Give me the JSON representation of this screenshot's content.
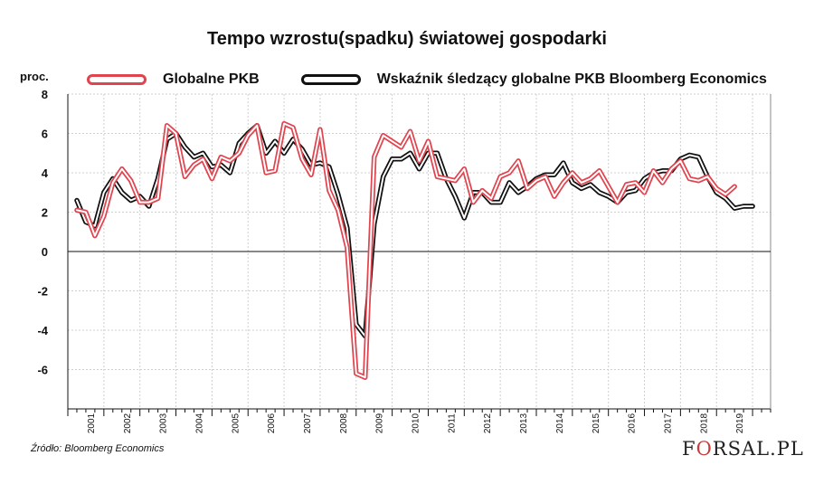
{
  "chart_data": {
    "type": "line",
    "title": "Tempo wzrostu(spadku) światowej gospodarki",
    "ylabel": "proc.",
    "ylim": [
      -8,
      8
    ],
    "yticks": [
      8,
      6,
      4,
      2,
      0,
      -2,
      -4,
      -6,
      -8
    ],
    "y_tick_labels": [
      "8",
      "6",
      "4",
      "2",
      "0",
      "-2",
      "-4",
      "-6",
      ""
    ],
    "x_range": [
      2000.75,
      2020.25
    ],
    "year_labels": [
      "2001",
      "2002",
      "2003",
      "2004",
      "2005",
      "2006",
      "2007",
      "2008",
      "2009",
      "2010",
      "2011",
      "2012",
      "2013",
      "2014",
      "2015",
      "2016",
      "2017",
      "2018",
      "2019"
    ],
    "grid": true,
    "legend_position": "top",
    "series": [
      {
        "name": "Globalne PKB",
        "color": "#e0454f",
        "style": "double-line",
        "x": [
          2001.0,
          2001.25,
          2001.5,
          2001.75,
          2002.0,
          2002.25,
          2002.5,
          2002.75,
          2003.0,
          2003.25,
          2003.5,
          2003.75,
          2004.0,
          2004.25,
          2004.5,
          2004.75,
          2005.0,
          2005.25,
          2005.5,
          2005.75,
          2006.0,
          2006.25,
          2006.5,
          2006.75,
          2007.0,
          2007.25,
          2007.5,
          2007.75,
          2008.0,
          2008.25,
          2008.5,
          2008.75,
          2009.0,
          2009.25,
          2009.5,
          2009.75,
          2010.0,
          2010.25,
          2010.5,
          2010.75,
          2011.0,
          2011.25,
          2011.5,
          2011.75,
          2012.0,
          2012.25,
          2012.5,
          2012.75,
          2013.0,
          2013.25,
          2013.5,
          2013.75,
          2014.0,
          2014.25,
          2014.5,
          2014.75,
          2015.0,
          2015.25,
          2015.5,
          2015.75,
          2016.0,
          2016.25,
          2016.5,
          2016.75,
          2017.0,
          2017.25,
          2017.5,
          2017.75,
          2018.0,
          2018.25,
          2018.5,
          2018.75,
          2019.0,
          2019.25
        ],
        "values": [
          2.1,
          2.0,
          0.8,
          1.8,
          3.5,
          4.2,
          3.6,
          2.5,
          2.5,
          2.7,
          6.4,
          6.0,
          3.8,
          4.4,
          4.7,
          3.7,
          4.8,
          4.6,
          5.0,
          5.9,
          6.4,
          4.0,
          4.1,
          6.5,
          6.3,
          4.7,
          3.9,
          6.2,
          3.1,
          2.1,
          0.2,
          -6.2,
          -6.4,
          4.8,
          5.9,
          5.6,
          5.3,
          6.1,
          4.6,
          5.6,
          3.8,
          3.7,
          3.6,
          4.2,
          2.5,
          3.1,
          2.7,
          3.8,
          4.0,
          4.6,
          3.2,
          3.6,
          3.8,
          2.8,
          3.5,
          4.0,
          3.5,
          3.7,
          4.1,
          3.3,
          2.5,
          3.4,
          3.5,
          3.0,
          4.1,
          3.5,
          4.2,
          4.6,
          3.7,
          3.6,
          3.8,
          3.2,
          2.9,
          3.3
        ]
      },
      {
        "name": "Wskaźnik śledzący globalne PKB Bloomberg Economics",
        "color": "#111111",
        "style": "double-line",
        "x": [
          2001.0,
          2001.25,
          2001.5,
          2001.75,
          2002.0,
          2002.25,
          2002.5,
          2002.75,
          2003.0,
          2003.25,
          2003.5,
          2003.75,
          2004.0,
          2004.25,
          2004.5,
          2004.75,
          2005.0,
          2005.25,
          2005.5,
          2005.75,
          2006.0,
          2006.25,
          2006.5,
          2006.75,
          2007.0,
          2007.25,
          2007.5,
          2007.75,
          2008.0,
          2008.25,
          2008.5,
          2008.75,
          2009.0,
          2009.25,
          2009.5,
          2009.75,
          2010.0,
          2010.25,
          2010.5,
          2010.75,
          2011.0,
          2011.25,
          2011.5,
          2011.75,
          2012.0,
          2012.25,
          2012.5,
          2012.75,
          2013.0,
          2013.25,
          2013.5,
          2013.75,
          2014.0,
          2014.25,
          2014.5,
          2014.75,
          2015.0,
          2015.25,
          2015.5,
          2015.75,
          2016.0,
          2016.25,
          2016.5,
          2016.75,
          2017.0,
          2017.25,
          2017.5,
          2017.75,
          2018.0,
          2018.25,
          2018.5,
          2018.75,
          2019.0,
          2019.25,
          2019.5,
          2019.75
        ],
        "values": [
          2.6,
          1.5,
          1.3,
          3.0,
          3.7,
          3.0,
          2.6,
          2.8,
          2.3,
          3.7,
          5.7,
          6.0,
          5.3,
          4.8,
          5.0,
          4.3,
          4.4,
          4.0,
          5.5,
          6.0,
          6.4,
          5.0,
          5.6,
          5.0,
          5.7,
          5.2,
          4.4,
          4.5,
          4.3,
          2.9,
          1.2,
          -3.7,
          -4.3,
          1.4,
          3.8,
          4.7,
          4.7,
          5.0,
          4.2,
          5.0,
          5.0,
          3.7,
          2.8,
          1.7,
          3.0,
          3.0,
          2.5,
          2.5,
          3.5,
          3.0,
          3.3,
          3.7,
          3.9,
          3.9,
          4.5,
          3.5,
          3.2,
          3.4,
          3.0,
          2.8,
          2.5,
          3.0,
          3.1,
          3.7,
          4.0,
          4.1,
          4.1,
          4.7,
          4.9,
          4.8,
          3.8,
          3.0,
          2.7,
          2.2,
          2.3,
          2.3
        ]
      }
    ]
  },
  "source": "Źródło: Bloomberg Economics",
  "logo": {
    "pre": "F",
    "mid": "O",
    "post": "RSAL.PL"
  }
}
